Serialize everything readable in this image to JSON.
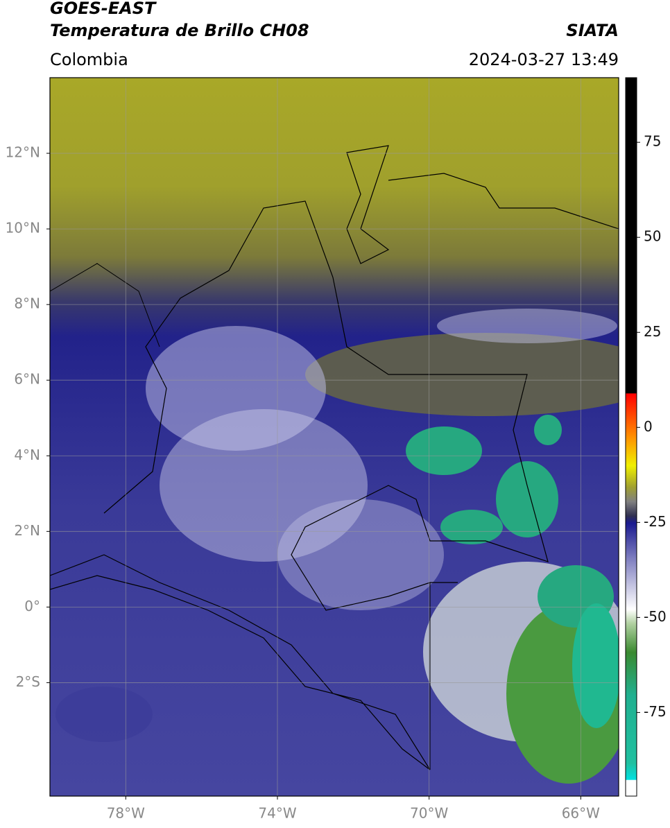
{
  "header": {
    "title": "GOES-EAST",
    "subtitle": "Temperatura de Brillo CH08",
    "source": "SIATA",
    "region": "Colombia",
    "timestamp": "2024-03-27 13:49"
  },
  "map": {
    "xlim": [
      -80,
      -65
    ],
    "ylim": [
      -5,
      14
    ],
    "xticks": [
      {
        "value": -78,
        "label": "78°W"
      },
      {
        "value": -74,
        "label": "74°W"
      },
      {
        "value": -70,
        "label": "70°W"
      },
      {
        "value": -66,
        "label": "66°W"
      }
    ],
    "yticks": [
      {
        "value": 12,
        "label": "12°N"
      },
      {
        "value": 10,
        "label": "10°N"
      },
      {
        "value": 8,
        "label": "8°N"
      },
      {
        "value": 6,
        "label": "6°N"
      },
      {
        "value": 4,
        "label": "4°N"
      },
      {
        "value": 2,
        "label": "2°N"
      },
      {
        "value": 0,
        "label": "0°"
      },
      {
        "value": -2,
        "label": "2°S"
      }
    ],
    "grid": true
  },
  "colorbar": {
    "clim": [
      -97,
      92
    ],
    "ticks": [
      75,
      50,
      25,
      0,
      -25,
      -50,
      -75
    ]
  }
}
